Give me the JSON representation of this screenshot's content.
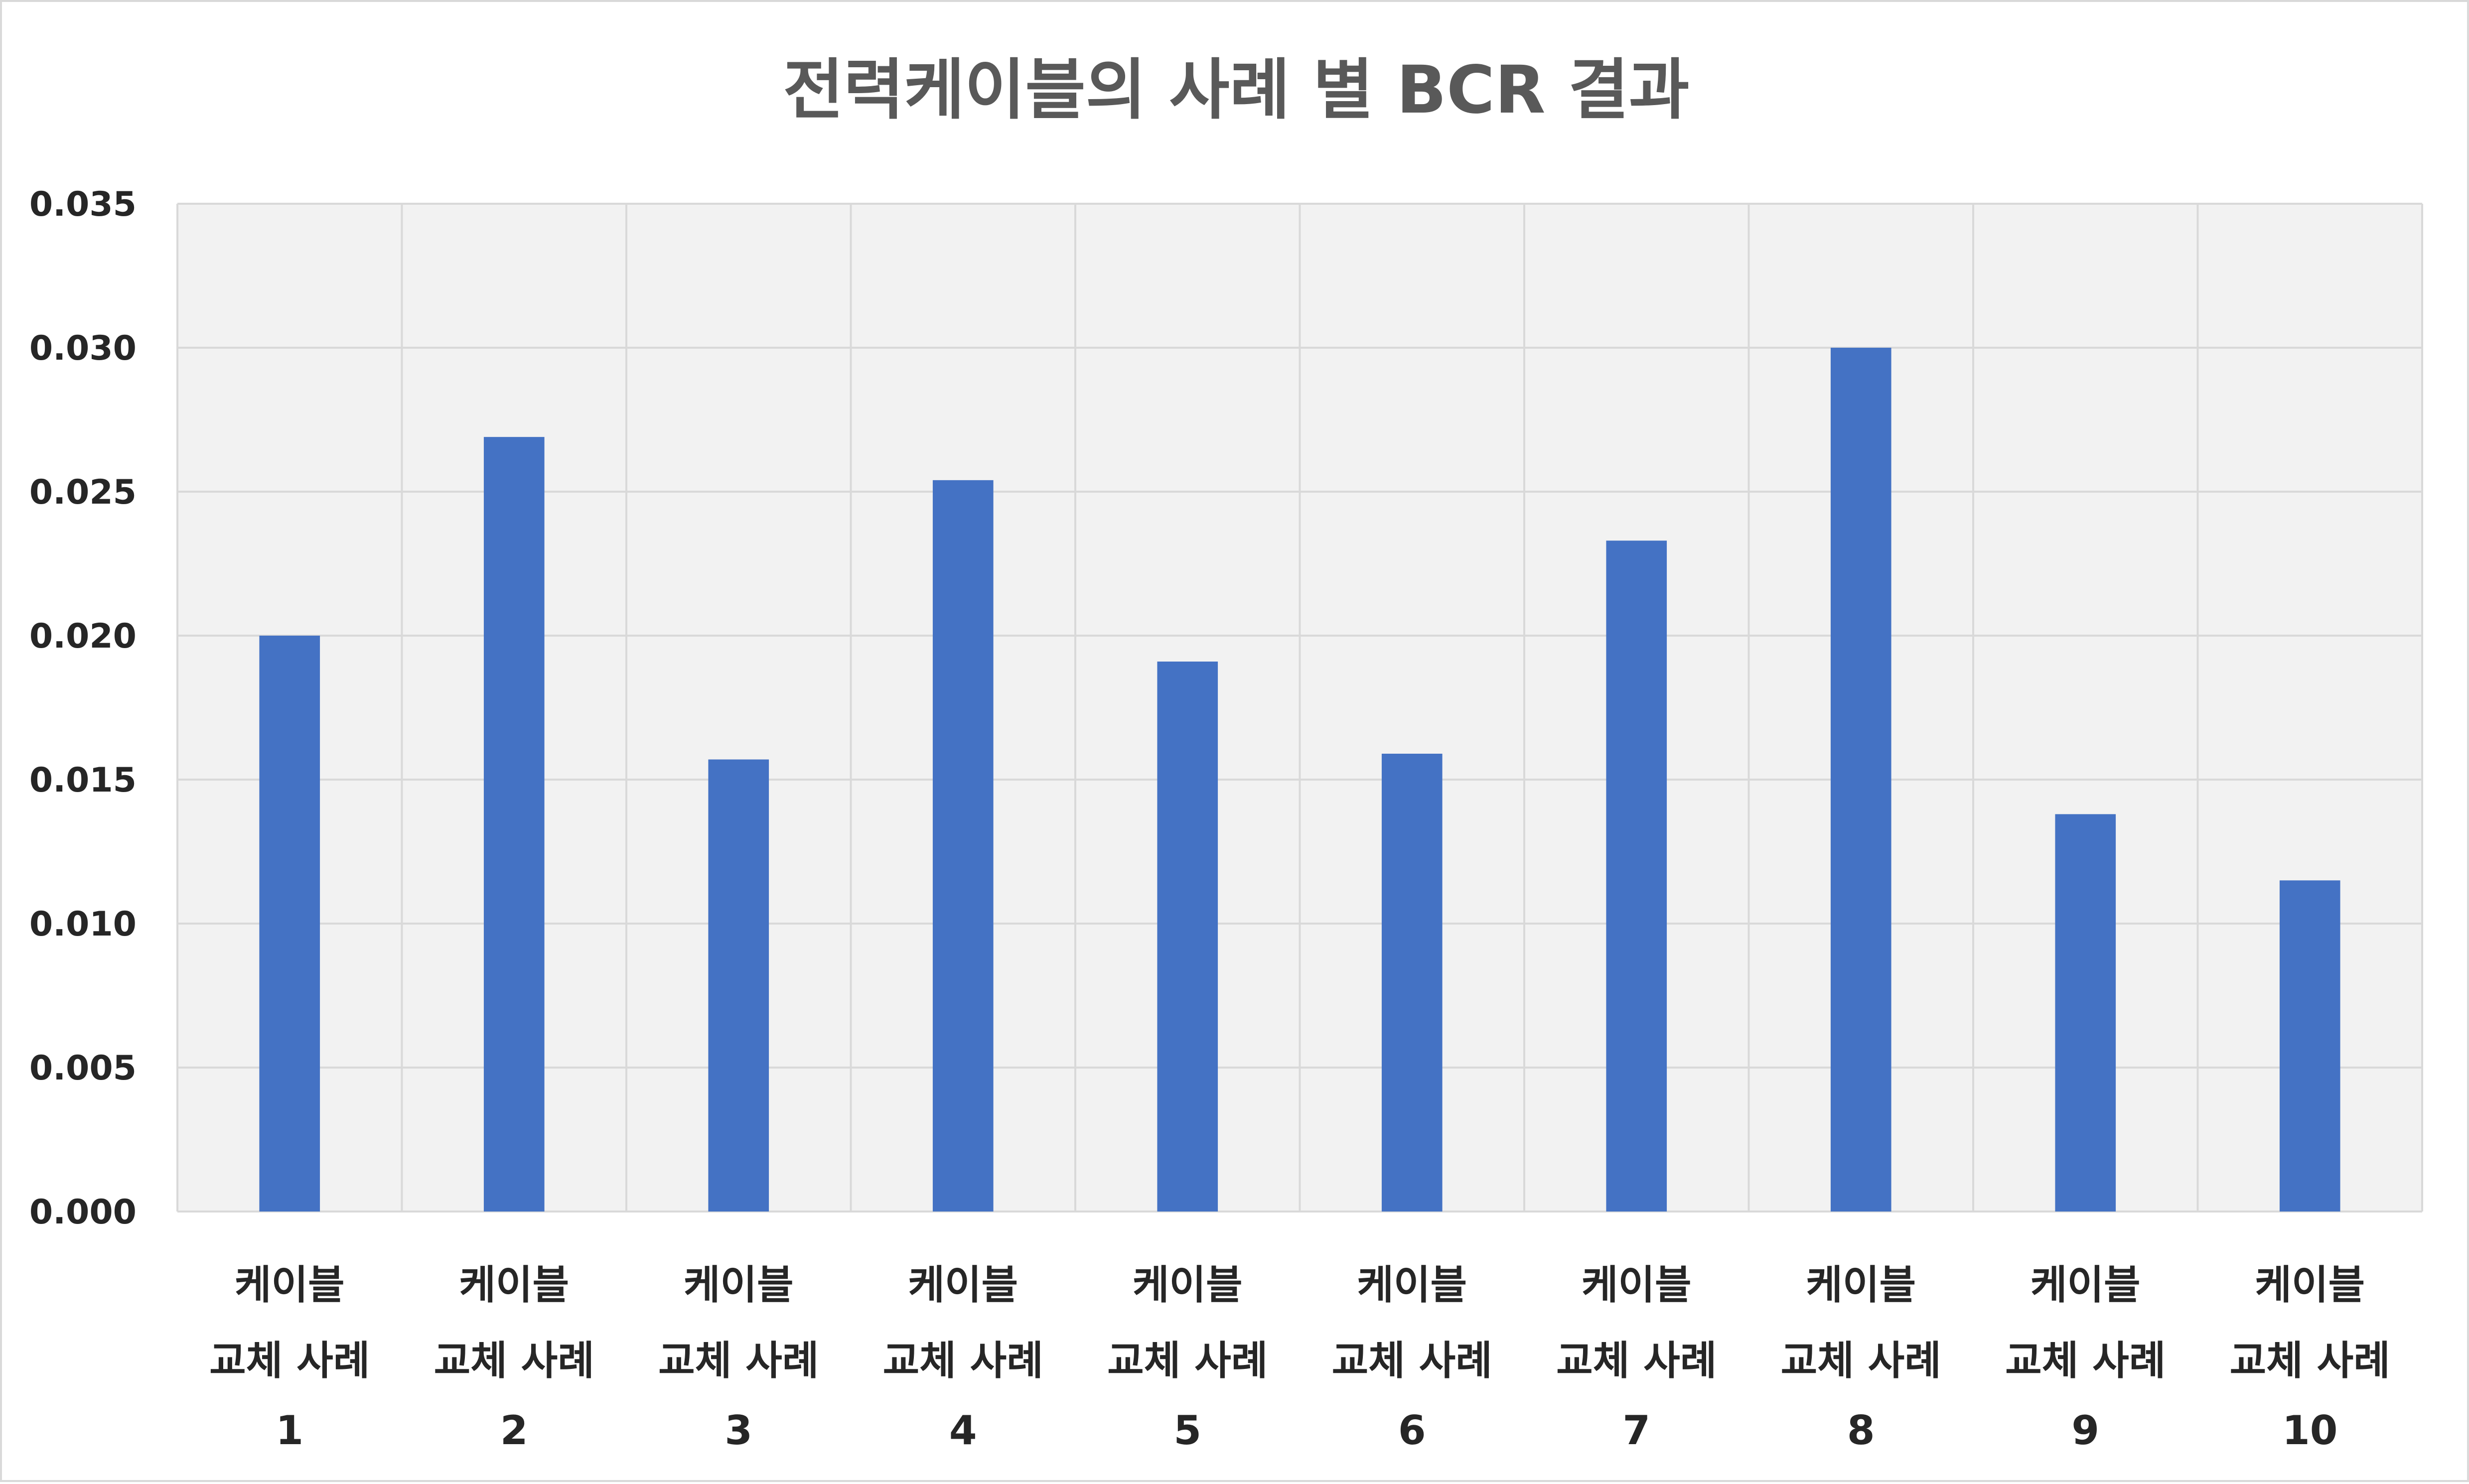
{
  "chart_data": {
    "type": "bar",
    "title": "전력케이블의 사례 별 BCR 결과",
    "xlabel": "",
    "ylabel": "",
    "categories": [
      [
        "케이블",
        "교체 사례",
        "1"
      ],
      [
        "케이블",
        "교체 사례",
        "2"
      ],
      [
        "케이블",
        "교체 사례",
        "3"
      ],
      [
        "케이블",
        "교체 사례",
        "4"
      ],
      [
        "케이블",
        "교체 사례",
        "5"
      ],
      [
        "케이블",
        "교체 사례",
        "6"
      ],
      [
        "케이블",
        "교체 사례",
        "7"
      ],
      [
        "케이블",
        "교체 사례",
        "8"
      ],
      [
        "케이블",
        "교체 사례",
        "9"
      ],
      [
        "케이블",
        "교체 사례",
        "10"
      ]
    ],
    "values": [
      0.02,
      0.0269,
      0.0157,
      0.0254,
      0.0191,
      0.0159,
      0.0233,
      0.03,
      0.0138,
      0.0115
    ],
    "ylim": [
      0,
      0.035
    ],
    "yticks": [
      "0.000",
      "0.005",
      "0.010",
      "0.015",
      "0.020",
      "0.025",
      "0.030",
      "0.035"
    ],
    "grid": true,
    "legend": "none",
    "colors": {
      "bar": "#4472c4",
      "plot_background": "#f2f2f2",
      "gridline": "#d9d9d9",
      "title": "#595959",
      "tick_text": "#262626"
    }
  }
}
